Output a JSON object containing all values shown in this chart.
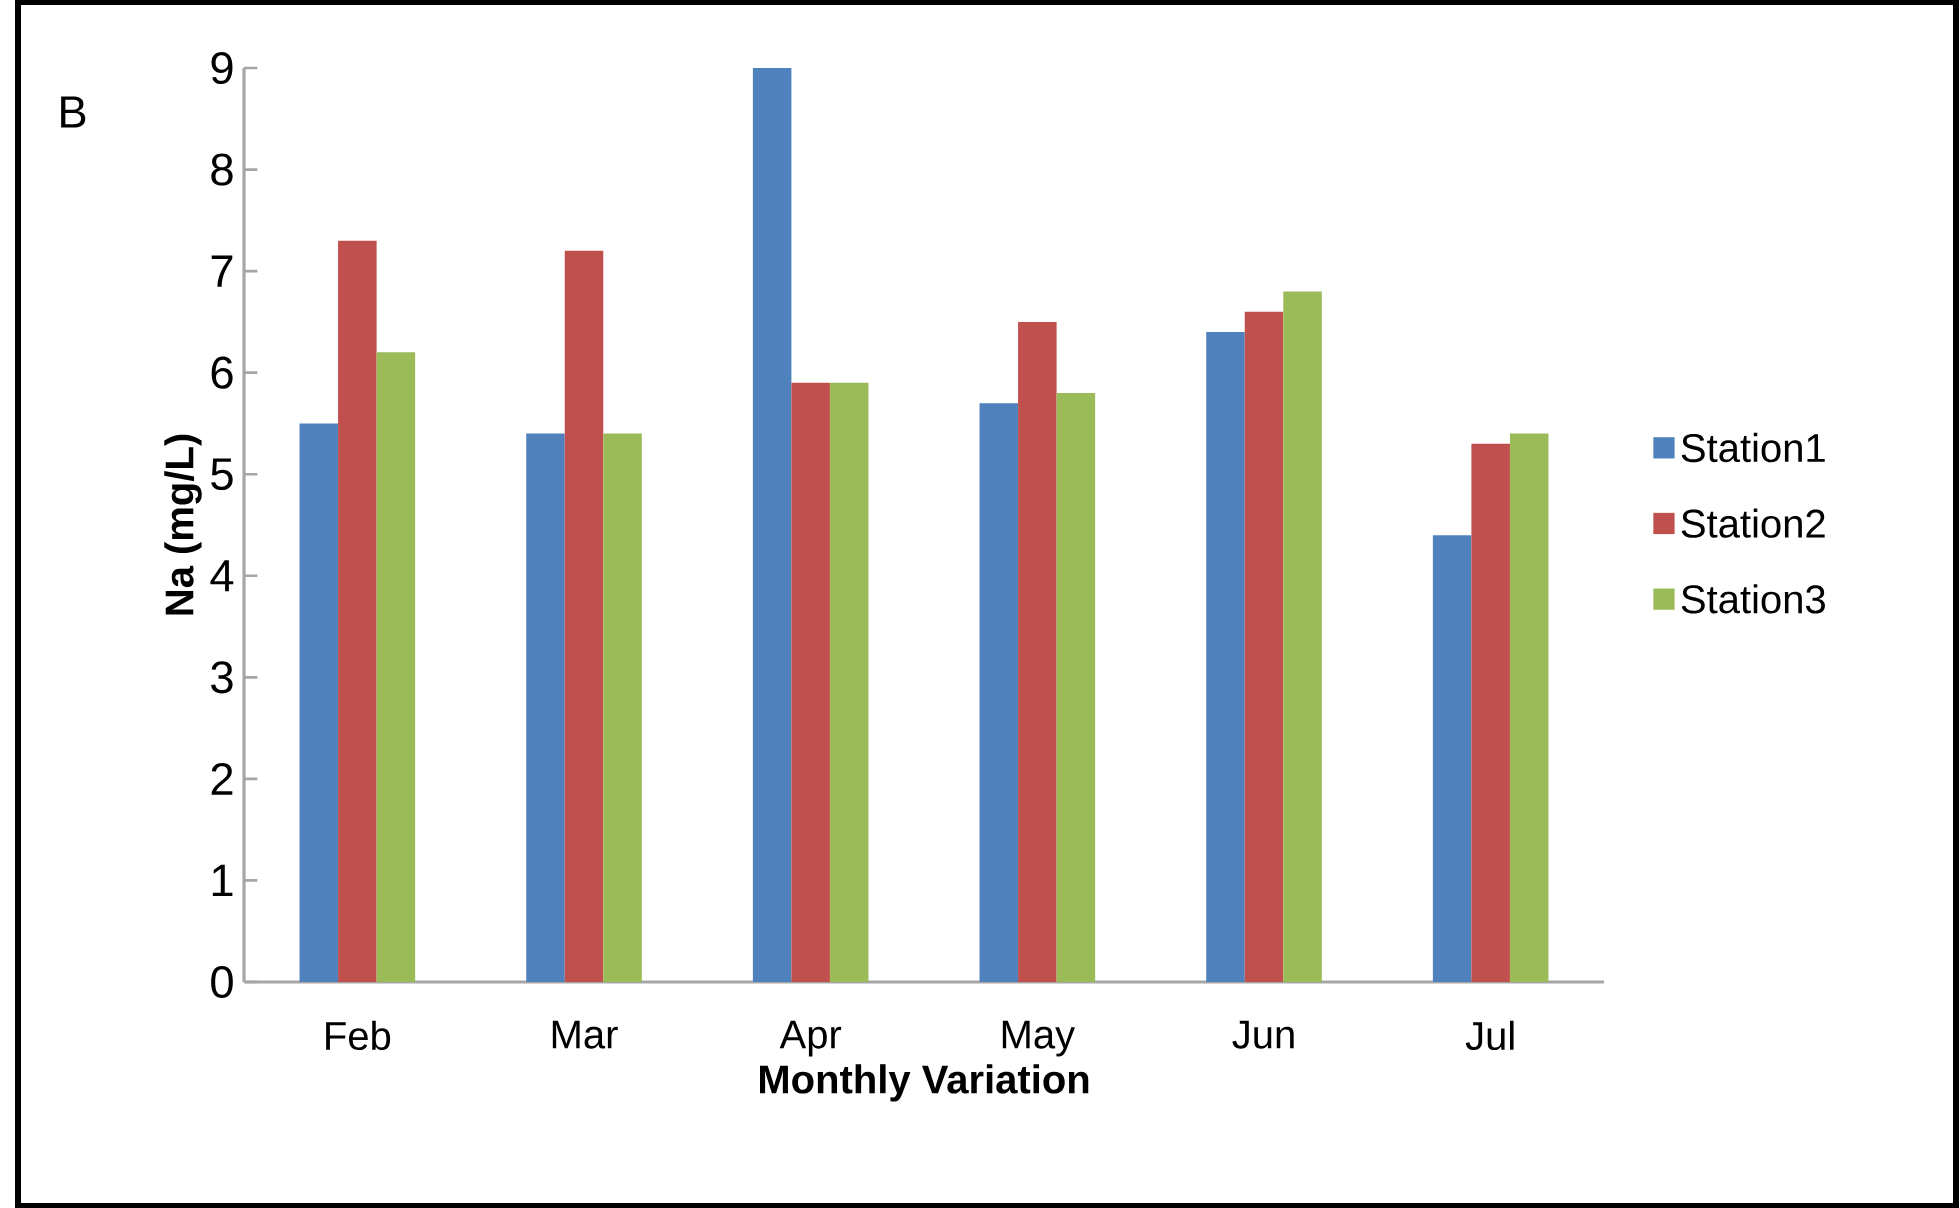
{
  "chart_data": {
    "type": "bar",
    "ylabel": "Na (mg/L)",
    "xlabel": "Monthly Variation",
    "annotations": [
      "B"
    ],
    "categories": [
      "Feb",
      "Mar",
      "Apr",
      "May",
      "Jun",
      "Jul"
    ],
    "series": [
      {
        "name": "Station1",
        "color": "#4f81bd",
        "values": [
          5.5,
          5.4,
          9.0,
          5.7,
          6.4,
          4.4
        ]
      },
      {
        "name": "Station2",
        "color": "#c0504d",
        "values": [
          7.3,
          7.2,
          5.9,
          6.5,
          6.6,
          5.3
        ]
      },
      {
        "name": "Station3",
        "color": "#9bbb59",
        "values": [
          6.2,
          5.4,
          5.9,
          5.8,
          6.8,
          5.4
        ]
      }
    ],
    "ylim": [
      0,
      9
    ],
    "yticks": [
      0,
      1,
      2,
      3,
      4,
      5,
      6,
      7,
      8,
      9
    ],
    "grid": false,
    "legend": "right"
  }
}
